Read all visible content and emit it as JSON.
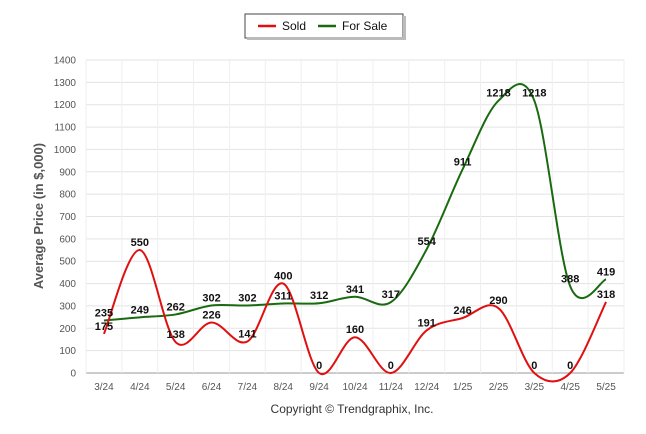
{
  "chart_data": {
    "type": "line",
    "categories": [
      "3/24",
      "4/24",
      "5/24",
      "6/24",
      "7/24",
      "8/24",
      "9/24",
      "10/24",
      "11/24",
      "12/24",
      "1/25",
      "2/25",
      "3/25",
      "4/25",
      "5/25"
    ],
    "series": [
      {
        "name": "Sold",
        "color": "#e01010",
        "values": [
          175,
          550,
          138,
          226,
          141,
          400,
          0,
          160,
          0,
          191,
          246,
          290,
          0,
          0,
          318
        ]
      },
      {
        "name": "For Sale",
        "color": "#1a6b10",
        "values": [
          235,
          249,
          262,
          302,
          302,
          311,
          312,
          341,
          317,
          554,
          911,
          1218,
          1218,
          388,
          419
        ]
      }
    ],
    "ylabel": "Average Price (in $,000)",
    "ylim": [
      0,
      1400
    ],
    "yticks": [
      0,
      100,
      200,
      300,
      400,
      500,
      600,
      700,
      800,
      900,
      1000,
      1100,
      1200,
      1300,
      1400
    ],
    "grid": true,
    "legend": "top-center",
    "show_data_labels": true
  },
  "footer": {
    "copyright": "Copyright © Trendgraphix, Inc."
  }
}
